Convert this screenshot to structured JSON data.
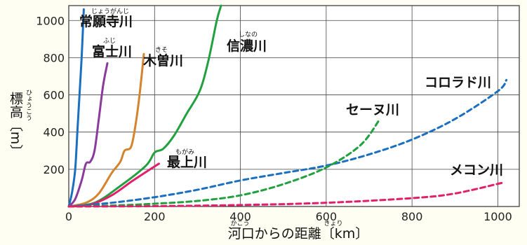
{
  "chart_data": {
    "type": "line",
    "x_axis": {
      "title": "河口からの距離〔km〕",
      "title_ruby": [
        {
          "text": "かこう",
          "under": "河口"
        },
        {
          "text": "きょり",
          "under": "距離"
        }
      ],
      "range": [
        0,
        1050
      ],
      "ticks": [
        0,
        200,
        400,
        600,
        800,
        1000
      ]
    },
    "y_axis": {
      "title": "標高〔m〕",
      "title_ruby": "ひょうこう",
      "range": [
        0,
        1080
      ],
      "ticks": [
        200,
        400,
        600,
        800,
        1000
      ]
    },
    "grid": true,
    "series": [
      {
        "name": "常願寺川",
        "ruby": "じょうがんじ",
        "color": "#1a6fc0",
        "style": "solid",
        "points": [
          [
            0,
            0
          ],
          [
            8,
            80
          ],
          [
            15,
            200
          ],
          [
            20,
            400
          ],
          [
            25,
            600
          ],
          [
            30,
            800
          ],
          [
            35,
            1060
          ]
        ]
      },
      {
        "name": "富士川",
        "ruby": "ふじ",
        "color": "#8a3a9a",
        "style": "solid",
        "points": [
          [
            0,
            0
          ],
          [
            15,
            40
          ],
          [
            30,
            140
          ],
          [
            40,
            230
          ],
          [
            50,
            240
          ],
          [
            60,
            300
          ],
          [
            70,
            470
          ],
          [
            80,
            650
          ],
          [
            90,
            770
          ]
        ]
      },
      {
        "name": "木曽川",
        "ruby": "きそ",
        "color": "#d4842e",
        "style": "solid",
        "points": [
          [
            0,
            0
          ],
          [
            40,
            20
          ],
          [
            70,
            70
          ],
          [
            100,
            180
          ],
          [
            120,
            240
          ],
          [
            130,
            300
          ],
          [
            145,
            320
          ],
          [
            155,
            430
          ],
          [
            165,
            600
          ],
          [
            175,
            820
          ]
        ]
      },
      {
        "name": "信濃川",
        "ruby": "しなの",
        "color": "#22a040",
        "style": "solid",
        "points": [
          [
            0,
            0
          ],
          [
            60,
            20
          ],
          [
            120,
            110
          ],
          [
            180,
            220
          ],
          [
            200,
            290
          ],
          [
            220,
            310
          ],
          [
            245,
            380
          ],
          [
            275,
            500
          ],
          [
            305,
            620
          ],
          [
            325,
            780
          ],
          [
            345,
            1000
          ],
          [
            355,
            1080
          ]
        ]
      },
      {
        "name": "最上川",
        "ruby": "もがみ",
        "color": "#e0206a",
        "style": "solid",
        "points": [
          [
            0,
            0
          ],
          [
            50,
            10
          ],
          [
            100,
            60
          ],
          [
            150,
            140
          ],
          [
            210,
            230
          ]
        ]
      },
      {
        "name": "コロラド川",
        "color": "#1a6fc0",
        "style": "dashed",
        "points": [
          [
            0,
            0
          ],
          [
            100,
            20
          ],
          [
            200,
            50
          ],
          [
            300,
            90
          ],
          [
            400,
            140
          ],
          [
            500,
            180
          ],
          [
            600,
            220
          ],
          [
            700,
            280
          ],
          [
            800,
            360
          ],
          [
            900,
            470
          ],
          [
            1000,
            620
          ],
          [
            1020,
            680
          ]
        ]
      },
      {
        "name": "セーヌ川",
        "color": "#22a040",
        "style": "dashed",
        "points": [
          [
            0,
            0
          ],
          [
            100,
            5
          ],
          [
            200,
            15
          ],
          [
            300,
            30
          ],
          [
            400,
            60
          ],
          [
            500,
            120
          ],
          [
            600,
            210
          ],
          [
            680,
            330
          ],
          [
            725,
            470
          ]
        ]
      },
      {
        "name": "メコン川",
        "color": "#e0206a",
        "style": "dashed",
        "points": [
          [
            0,
            0
          ],
          [
            200,
            2
          ],
          [
            400,
            8
          ],
          [
            600,
            20
          ],
          [
            800,
            45
          ],
          [
            900,
            70
          ],
          [
            1015,
            130
          ]
        ]
      }
    ]
  }
}
